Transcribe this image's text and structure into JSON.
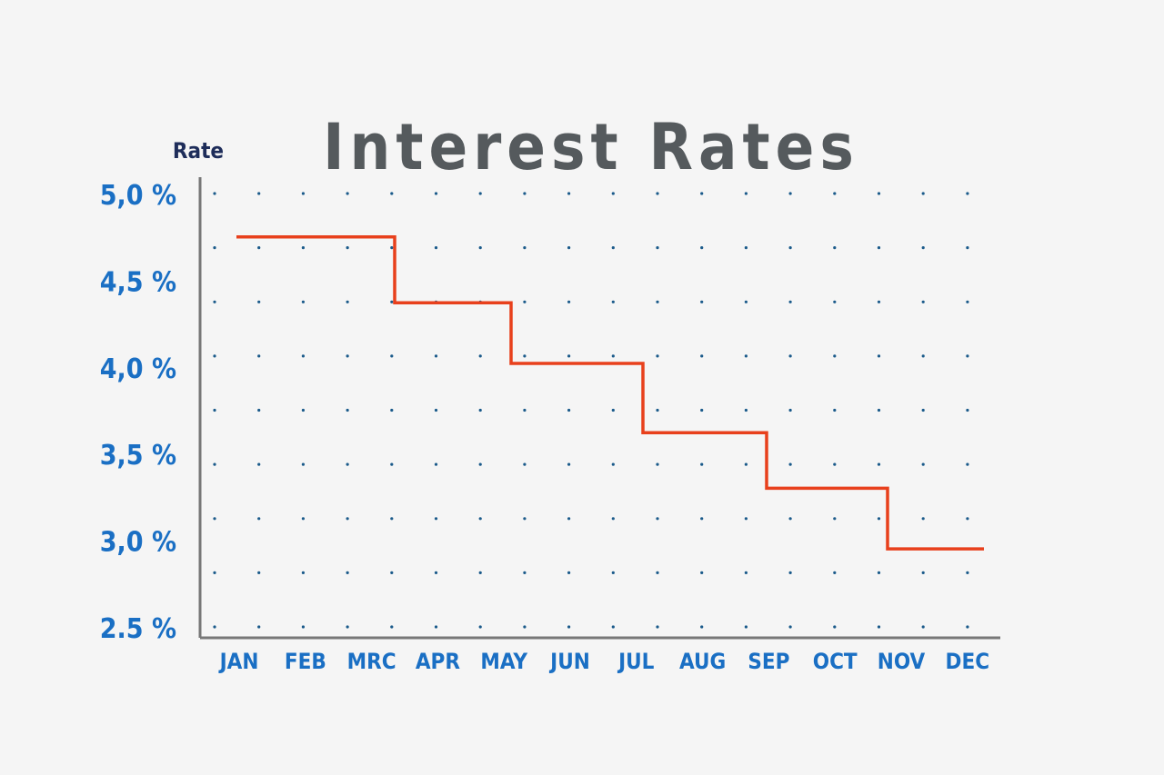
{
  "chart_data": {
    "type": "line",
    "step": true,
    "title": "Interest Rates",
    "ylabel": "Rate",
    "xlabel": "",
    "categories": [
      "JAN",
      "FEB",
      "MRC",
      "APR",
      "MAY",
      "JUN",
      "JUL",
      "AUG",
      "SEP",
      "OCT",
      "NOV",
      "DEC"
    ],
    "y_ticks": [
      "5,0 %",
      "4,5 %",
      "4,0 %",
      "3,5 %",
      "3,0 %",
      "2.5 %"
    ],
    "y_tick_values": [
      5.0,
      4.5,
      4.0,
      3.5,
      3.0,
      2.5
    ],
    "ylim": [
      2.5,
      5.0
    ],
    "series": [
      {
        "values": [
          4.75,
          4.75,
          4.75,
          4.37,
          4.02,
          4.02,
          3.62,
          3.62,
          3.3,
          3.3,
          2.95,
          2.95
        ]
      }
    ],
    "grid": "dotted",
    "colors": {
      "line": "#e8401c",
      "tick_labels": "#1a6fc4",
      "ylabel": "#1e2d5a",
      "title": "#555a5d",
      "axis": "#777777",
      "grid_dots": "#1a5a8a",
      "background": "#f5f5f5"
    }
  }
}
